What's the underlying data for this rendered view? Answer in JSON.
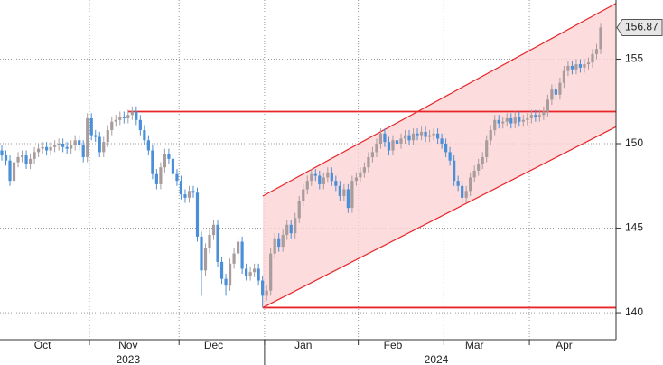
{
  "chart_data": {
    "type": "candlestick",
    "categories": [
      null,
      null,
      null,
      null,
      null,
      null,
      null,
      null,
      null,
      null,
      "Oct",
      null,
      null,
      null,
      null,
      null,
      null,
      null,
      null,
      null,
      null,
      null,
      null,
      null,
      null,
      null,
      null,
      null,
      null,
      null,
      null,
      "Nov",
      null,
      null,
      null,
      null,
      null,
      null,
      null,
      null,
      null,
      null,
      null,
      null,
      null,
      null,
      null,
      null,
      null,
      null,
      null,
      null,
      "Dec",
      null,
      null,
      null,
      null,
      null,
      null,
      null,
      null,
      null,
      null,
      null,
      null,
      null,
      null,
      null,
      null,
      null,
      null,
      null,
      null,
      null,
      "Jan",
      null,
      null,
      null,
      null,
      null,
      null,
      null,
      null,
      null,
      null,
      null,
      null,
      null,
      null,
      null,
      null,
      null,
      null,
      null,
      null,
      null,
      "Feb",
      null,
      null,
      null,
      null,
      null,
      null,
      null,
      null,
      null,
      null,
      null,
      null,
      null,
      null,
      null,
      null,
      null,
      null,
      null,
      "Mar",
      null,
      null,
      null,
      null,
      null,
      null,
      null,
      null,
      null,
      null,
      null,
      null,
      null,
      null,
      null,
      null,
      null,
      null,
      null,
      null,
      null,
      "Apr",
      null,
      null,
      null,
      null,
      null,
      null,
      null,
      null,
      null
    ],
    "x_group_labels": [
      "2023",
      "2024"
    ],
    "open": [
      149.6,
      149.3,
      149.0,
      147.8,
      148.9,
      149.2,
      149.3,
      148.8,
      149.1,
      149.5,
      149.7,
      149.8,
      149.6,
      149.8,
      149.9,
      150.0,
      149.8,
      149.7,
      149.9,
      150.2,
      149.9,
      149.2,
      151.5,
      150.5,
      150.4,
      149.5,
      150.1,
      150.8,
      151.3,
      151.4,
      151.6,
      151.5,
      151.7,
      151.9,
      151.4,
      150.8,
      150.2,
      149.6,
      148.2,
      147.6,
      148.6,
      149.4,
      149.1,
      148.2,
      147.8,
      147.0,
      146.8,
      147.2,
      147.1,
      144.5,
      142.5,
      143.8,
      144.6,
      145.2,
      143.0,
      142.0,
      141.6,
      142.9,
      143.5,
      144.2,
      142.6,
      142.2,
      142.4,
      142.6,
      141.9,
      141.0,
      141.3,
      143.5,
      144.4,
      143.9,
      144.6,
      145.2,
      144.7,
      145.6,
      146.6,
      147.3,
      147.8,
      148.2,
      148.1,
      147.6,
      148.0,
      148.3,
      147.8,
      147.5,
      146.9,
      147.3,
      146.2,
      147.8,
      148.0,
      148.3,
      148.6,
      149.2,
      149.5,
      150.0,
      150.6,
      150.1,
      149.6,
      150.2,
      150.0,
      150.3,
      150.5,
      150.2,
      150.6,
      150.5,
      150.7,
      150.4,
      150.5,
      150.6,
      150.3,
      150.0,
      149.5,
      149.0,
      147.8,
      147.5,
      146.8,
      147.2,
      148.0,
      148.4,
      148.8,
      149.2,
      150.2,
      150.8,
      151.4,
      151.2,
      151.3,
      151.5,
      151.2,
      151.6,
      151.3,
      151.4,
      151.5,
      151.7,
      151.6,
      151.7,
      151.9,
      152.6,
      153.2,
      152.9,
      153.6,
      154.3,
      154.6,
      154.4,
      154.7,
      154.5,
      154.7,
      154.8,
      155.3,
      155.6
    ],
    "high": [
      149.9,
      149.6,
      149.3,
      149.2,
      149.5,
      149.6,
      149.6,
      149.4,
      149.8,
      150.0,
      150.1,
      150.1,
      150.1,
      150.2,
      150.3,
      150.3,
      150.1,
      150.2,
      150.5,
      150.5,
      150.2,
      151.8,
      151.8,
      150.8,
      150.7,
      150.4,
      151.1,
      151.6,
      151.7,
      151.9,
      151.9,
      152.0,
      152.2,
      152.2,
      151.7,
      151.1,
      150.5,
      149.9,
      148.5,
      148.9,
      149.7,
      149.7,
      149.4,
      148.5,
      148.1,
      147.3,
      147.5,
      147.5,
      147.4,
      144.8,
      144.1,
      144.9,
      145.5,
      145.5,
      143.3,
      142.3,
      143.2,
      143.8,
      144.5,
      144.5,
      142.9,
      142.7,
      142.9,
      142.9,
      142.2,
      141.6,
      143.8,
      144.7,
      144.7,
      144.9,
      145.5,
      145.5,
      145.9,
      146.9,
      147.6,
      148.1,
      148.5,
      148.5,
      148.4,
      148.3,
      148.6,
      148.6,
      148.1,
      147.8,
      147.6,
      147.6,
      148.1,
      148.3,
      148.6,
      148.9,
      149.5,
      149.8,
      150.3,
      150.9,
      150.9,
      150.4,
      150.5,
      150.5,
      150.6,
      150.8,
      150.8,
      150.9,
      150.9,
      151.0,
      151.0,
      150.8,
      150.9,
      150.9,
      150.6,
      150.3,
      149.8,
      149.3,
      148.1,
      147.8,
      147.5,
      148.3,
      148.7,
      149.1,
      149.5,
      150.5,
      151.1,
      151.7,
      151.7,
      151.6,
      151.8,
      151.8,
      151.9,
      151.9,
      151.7,
      151.8,
      152.0,
      152.0,
      152.0,
      152.2,
      152.9,
      153.5,
      153.5,
      153.9,
      154.6,
      154.9,
      154.9,
      155.0,
      155.0,
      155.0,
      155.1,
      155.6,
      155.9,
      157.1
    ],
    "low": [
      149.0,
      148.7,
      147.5,
      147.5,
      148.6,
      148.9,
      148.5,
      148.5,
      148.8,
      149.2,
      149.4,
      149.3,
      149.3,
      149.5,
      149.6,
      149.5,
      149.4,
      149.4,
      149.6,
      149.6,
      148.9,
      148.9,
      150.2,
      150.1,
      149.2,
      149.2,
      149.8,
      150.5,
      151.0,
      151.1,
      151.2,
      151.2,
      151.4,
      151.1,
      150.5,
      149.9,
      149.3,
      147.9,
      147.3,
      147.3,
      148.3,
      148.8,
      147.9,
      147.5,
      146.7,
      146.5,
      146.5,
      146.8,
      144.2,
      141.0,
      142.2,
      143.5,
      144.3,
      142.7,
      141.7,
      141.0,
      141.3,
      142.6,
      143.2,
      142.3,
      141.9,
      141.9,
      142.1,
      141.6,
      140.3,
      140.7,
      141.0,
      143.2,
      143.6,
      143.6,
      144.3,
      144.4,
      144.4,
      145.3,
      146.3,
      147.0,
      147.5,
      147.8,
      147.3,
      147.3,
      147.7,
      147.5,
      147.2,
      146.6,
      146.6,
      145.9,
      145.9,
      147.5,
      147.7,
      148.0,
      148.3,
      148.9,
      149.2,
      149.7,
      149.8,
      149.3,
      149.3,
      149.7,
      149.7,
      150.0,
      149.9,
      149.9,
      150.2,
      150.2,
      150.1,
      150.1,
      150.2,
      150.0,
      149.7,
      149.2,
      148.7,
      147.5,
      147.2,
      146.5,
      146.5,
      146.9,
      147.7,
      148.1,
      148.5,
      148.9,
      149.9,
      150.5,
      150.9,
      150.9,
      151.0,
      150.9,
      150.9,
      151.0,
      151.0,
      151.1,
      151.2,
      151.3,
      151.3,
      151.4,
      151.6,
      152.3,
      152.6,
      152.6,
      153.3,
      154.0,
      154.1,
      154.1,
      154.2,
      154.2,
      154.4,
      154.5,
      155.0,
      155.3
    ],
    "close": [
      149.3,
      149.0,
      147.8,
      148.9,
      149.2,
      149.3,
      148.8,
      149.1,
      149.5,
      149.7,
      149.8,
      149.6,
      149.8,
      149.9,
      150.0,
      149.8,
      149.7,
      149.9,
      150.2,
      149.9,
      149.2,
      151.5,
      150.5,
      150.4,
      149.5,
      150.1,
      150.8,
      151.3,
      151.4,
      151.6,
      151.5,
      151.7,
      151.9,
      151.4,
      150.8,
      150.2,
      149.6,
      148.2,
      147.6,
      148.6,
      149.4,
      149.1,
      148.2,
      147.8,
      147.0,
      146.8,
      147.2,
      147.1,
      144.5,
      142.5,
      143.8,
      144.6,
      145.2,
      143.0,
      142.0,
      141.6,
      142.9,
      143.5,
      144.2,
      142.6,
      142.2,
      142.4,
      142.6,
      141.9,
      141.0,
      141.3,
      143.5,
      144.4,
      143.9,
      144.6,
      145.2,
      144.7,
      145.6,
      146.6,
      147.3,
      147.8,
      148.2,
      148.1,
      147.6,
      148.0,
      148.3,
      147.8,
      147.5,
      146.9,
      147.3,
      146.2,
      147.8,
      148.0,
      148.3,
      148.6,
      149.2,
      149.5,
      150.0,
      150.6,
      150.1,
      149.6,
      150.2,
      150.0,
      150.3,
      150.5,
      150.2,
      150.6,
      150.5,
      150.7,
      150.4,
      150.5,
      150.6,
      150.3,
      150.0,
      149.5,
      149.0,
      147.8,
      147.5,
      146.8,
      147.2,
      148.0,
      148.4,
      148.8,
      149.2,
      150.2,
      150.8,
      151.4,
      151.2,
      151.3,
      151.5,
      151.2,
      151.6,
      151.3,
      151.4,
      151.5,
      151.7,
      151.6,
      151.7,
      151.9,
      152.6,
      153.2,
      152.9,
      153.6,
      154.3,
      154.6,
      154.4,
      154.7,
      154.5,
      154.7,
      154.8,
      155.3,
      155.6,
      156.87
    ],
    "up_color": "#a89c9c",
    "down_color": "#4a8fd8",
    "ylim": [
      138.4,
      158.5
    ],
    "yticks": [
      140,
      145,
      150,
      155
    ],
    "grid": true,
    "axis_side": "right",
    "levels": [
      151.9,
      140.3
    ],
    "channel": {
      "lower": [
        140.3,
        151.0
      ],
      "upper": [
        146.9,
        158.3
      ],
      "color": "#e8262a",
      "fill": "#fbd3d3"
    }
  }
}
